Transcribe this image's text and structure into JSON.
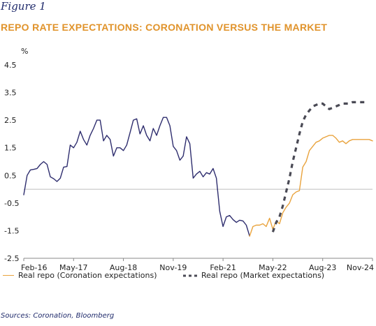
{
  "figure_label": "Figure 1",
  "title": "REPO RATE EXPECTATIONS: CORONATION VERSUS THE MARKET",
  "sources": "Sources: Coronation, Bloomberg",
  "colors": {
    "coronation": "#e9a33d",
    "market": "#4a4a55",
    "history": "#2e2d6e",
    "zero_line": "#bdbdbd"
  },
  "chart_data": {
    "type": "line",
    "title": "",
    "unit": "%",
    "xlabel": "",
    "ylabel": "",
    "x_ticks": [
      "Feb-16",
      "May-17",
      "Aug-18",
      "Nov-19",
      "Feb-21",
      "May-22",
      "Aug-23",
      "Nov-24"
    ],
    "y_ticks": [
      "4.5",
      "3.5",
      "2.5",
      "1.5",
      "0.5",
      "-0.5",
      "-1.5",
      "-2.5"
    ],
    "ylim": [
      -2.5,
      4.5
    ],
    "grid": false,
    "legend_position": "bottom",
    "series": [
      {
        "name": "",
        "style": "solid",
        "points": [
          [
            "2016-02",
            -0.2
          ],
          [
            "2016-03",
            0.5
          ],
          [
            "2016-04",
            0.7
          ],
          [
            "2016-05",
            0.72
          ],
          [
            "2016-06",
            0.75
          ],
          [
            "2016-07",
            0.9
          ],
          [
            "2016-08",
            1.0
          ],
          [
            "2016-09",
            0.9
          ],
          [
            "2016-10",
            0.45
          ],
          [
            "2016-11",
            0.38
          ],
          [
            "2016-12",
            0.28
          ],
          [
            "2017-01",
            0.4
          ],
          [
            "2017-02",
            0.8
          ],
          [
            "2017-03",
            0.82
          ],
          [
            "2017-04",
            1.6
          ],
          [
            "2017-05",
            1.5
          ],
          [
            "2017-06",
            1.7
          ],
          [
            "2017-07",
            2.1
          ],
          [
            "2017-08",
            1.8
          ],
          [
            "2017-09",
            1.6
          ],
          [
            "2017-10",
            1.95
          ],
          [
            "2017-11",
            2.2
          ],
          [
            "2017-12",
            2.5
          ],
          [
            "2018-01",
            2.5
          ],
          [
            "2018-02",
            1.75
          ],
          [
            "2018-03",
            1.95
          ],
          [
            "2018-04",
            1.8
          ],
          [
            "2018-05",
            1.2
          ],
          [
            "2018-06",
            1.5
          ],
          [
            "2018-07",
            1.5
          ],
          [
            "2018-08",
            1.4
          ],
          [
            "2018-09",
            1.6
          ],
          [
            "2018-10",
            2.05
          ],
          [
            "2018-11",
            2.5
          ],
          [
            "2018-12",
            2.55
          ],
          [
            "2019-01",
            2.0
          ],
          [
            "2019-02",
            2.3
          ],
          [
            "2019-03",
            1.95
          ],
          [
            "2019-04",
            1.75
          ],
          [
            "2019-05",
            2.2
          ],
          [
            "2019-06",
            1.95
          ],
          [
            "2019-07",
            2.3
          ],
          [
            "2019-08",
            2.6
          ],
          [
            "2019-09",
            2.6
          ],
          [
            "2019-10",
            2.3
          ],
          [
            "2019-11",
            1.55
          ],
          [
            "2019-12",
            1.4
          ],
          [
            "2020-01",
            1.05
          ],
          [
            "2020-02",
            1.2
          ],
          [
            "2020-03",
            1.9
          ],
          [
            "2020-04",
            1.65
          ],
          [
            "2020-05",
            0.4
          ],
          [
            "2020-06",
            0.55
          ],
          [
            "2020-07",
            0.65
          ],
          [
            "2020-08",
            0.45
          ],
          [
            "2020-09",
            0.6
          ],
          [
            "2020-10",
            0.55
          ],
          [
            "2020-11",
            0.75
          ],
          [
            "2020-12",
            0.4
          ],
          [
            "2021-01",
            -0.8
          ],
          [
            "2021-02",
            -1.35
          ],
          [
            "2021-03",
            -1.0
          ],
          [
            "2021-04",
            -0.95
          ],
          [
            "2021-05",
            -1.1
          ],
          [
            "2021-06",
            -1.2
          ],
          [
            "2021-07",
            -1.12
          ],
          [
            "2021-08",
            -1.15
          ],
          [
            "2021-09",
            -1.3
          ],
          [
            "2021-10",
            -1.7
          ]
        ]
      },
      {
        "name": "Real repo (Coronation expectations)",
        "style": "solid",
        "points": [
          [
            "2021-10",
            -1.7
          ],
          [
            "2021-11",
            -1.35
          ],
          [
            "2021-12",
            -1.3
          ],
          [
            "2022-01",
            -1.3
          ],
          [
            "2022-02",
            -1.25
          ],
          [
            "2022-03",
            -1.35
          ],
          [
            "2022-04",
            -1.05
          ],
          [
            "2022-05",
            -1.45
          ],
          [
            "2022-06",
            -1.15
          ],
          [
            "2022-07",
            -1.25
          ],
          [
            "2022-08",
            -0.85
          ],
          [
            "2022-09",
            -0.65
          ],
          [
            "2022-10",
            -0.5
          ],
          [
            "2022-11",
            -0.2
          ],
          [
            "2022-12",
            -0.1
          ],
          [
            "2023-01",
            -0.05
          ],
          [
            "2023-02",
            0.8
          ],
          [
            "2023-03",
            1.0
          ],
          [
            "2023-04",
            1.4
          ],
          [
            "2023-05",
            1.55
          ],
          [
            "2023-06",
            1.7
          ],
          [
            "2023-07",
            1.75
          ],
          [
            "2023-08",
            1.85
          ],
          [
            "2023-09",
            1.9
          ],
          [
            "2023-10",
            1.95
          ],
          [
            "2023-11",
            1.95
          ],
          [
            "2023-12",
            1.85
          ],
          [
            "2024-01",
            1.7
          ],
          [
            "2024-02",
            1.75
          ],
          [
            "2024-03",
            1.65
          ],
          [
            "2024-04",
            1.75
          ],
          [
            "2024-05",
            1.8
          ],
          [
            "2024-06",
            1.8
          ],
          [
            "2024-07",
            1.8
          ],
          [
            "2024-08",
            1.8
          ],
          [
            "2024-09",
            1.8
          ],
          [
            "2024-10",
            1.8
          ],
          [
            "2024-11",
            1.75
          ]
        ]
      },
      {
        "name": "Real repo (Market expectations)",
        "style": "dashed",
        "points": [
          [
            "2022-05",
            -1.55
          ],
          [
            "2022-06",
            -1.2
          ],
          [
            "2022-07",
            -1.0
          ],
          [
            "2022-08",
            -0.6
          ],
          [
            "2022-09",
            -0.1
          ],
          [
            "2022-10",
            0.4
          ],
          [
            "2022-11",
            1.0
          ],
          [
            "2022-12",
            1.5
          ],
          [
            "2023-01",
            2.0
          ],
          [
            "2023-02",
            2.45
          ],
          [
            "2023-03",
            2.7
          ],
          [
            "2023-04",
            2.85
          ],
          [
            "2023-05",
            3.0
          ],
          [
            "2023-06",
            3.05
          ],
          [
            "2023-07",
            3.1
          ],
          [
            "2023-08",
            3.1
          ],
          [
            "2023-09",
            3.0
          ],
          [
            "2023-10",
            2.9
          ],
          [
            "2023-11",
            2.95
          ],
          [
            "2023-12",
            3.0
          ],
          [
            "2024-01",
            3.05
          ],
          [
            "2024-02",
            3.1
          ],
          [
            "2024-03",
            3.1
          ],
          [
            "2024-04",
            3.1
          ],
          [
            "2024-05",
            3.15
          ],
          [
            "2024-06",
            3.15
          ],
          [
            "2024-07",
            3.15
          ],
          [
            "2024-08",
            3.15
          ],
          [
            "2024-09",
            3.15
          ]
        ]
      }
    ]
  }
}
